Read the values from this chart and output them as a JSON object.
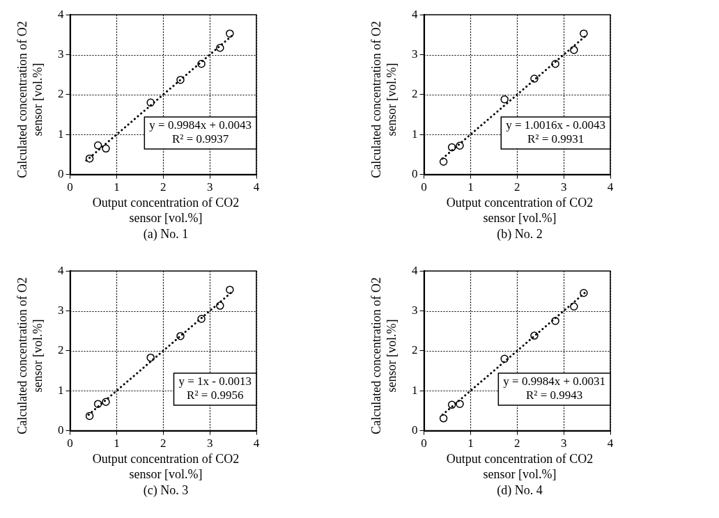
{
  "chart_data": [
    {
      "type": "scatter",
      "title": "(a) No. 1",
      "xlabel": "Output concentration of CO2 sensor [vol.%]",
      "ylabel": "Calculated concentration of O2 sensor [vol.%]",
      "x": [
        0.42,
        0.6,
        0.77,
        1.73,
        2.37,
        2.82,
        3.22,
        3.43
      ],
      "series": [
        {
          "color": "#000000",
          "values": [
            0.4,
            0.73,
            0.65,
            1.8,
            2.37,
            2.77,
            3.17,
            3.53
          ],
          "marker": "circle"
        },
        {
          "type": "line",
          "color": "#000000",
          "x": [
            0.35,
            3.5
          ],
          "values": [
            0.35,
            3.5
          ],
          "marker": "none",
          "line_style": "dotted"
        }
      ],
      "annotations": [
        "y = 0.9984x + 0.0043",
        "R² = 0.9937"
      ],
      "xlim": [
        0,
        4
      ],
      "ylim": [
        0,
        4
      ],
      "xticks": [
        0,
        1,
        2,
        3,
        4
      ],
      "yticks": [
        0,
        1,
        2,
        3,
        4
      ],
      "grid": true,
      "legend": false
    },
    {
      "type": "scatter",
      "title": "(b) No. 2",
      "xlabel": "Output concentration of CO2 sensor [vol.%]",
      "ylabel": "Calculated concentration of O2 sensor [vol.%]",
      "x": [
        0.42,
        0.6,
        0.77,
        1.73,
        2.37,
        2.82,
        3.22,
        3.43
      ],
      "series": [
        {
          "color": "#000000",
          "values": [
            0.32,
            0.68,
            0.72,
            1.88,
            2.4,
            2.77,
            3.12,
            3.53
          ],
          "marker": "circle"
        },
        {
          "type": "line",
          "color": "#000000",
          "x": [
            0.4,
            3.45
          ],
          "values": [
            0.4,
            3.45
          ],
          "marker": "none",
          "line_style": "dotted"
        }
      ],
      "annotations": [
        "y = 1.0016x - 0.0043",
        "R² = 0.9931"
      ],
      "xlim": [
        0,
        4
      ],
      "ylim": [
        0,
        4
      ],
      "xticks": [
        0,
        1,
        2,
        3,
        4
      ],
      "yticks": [
        0,
        1,
        2,
        3,
        4
      ],
      "grid": true,
      "legend": false
    },
    {
      "type": "scatter",
      "title": "(c) No. 3",
      "xlabel": "Output concentration of CO2 sensor [vol.%]",
      "ylabel": "Calculated concentration of O2 sensor [vol.%]",
      "x": [
        0.42,
        0.6,
        0.77,
        1.73,
        2.37,
        2.82,
        3.22,
        3.43
      ],
      "series": [
        {
          "color": "#000000",
          "values": [
            0.37,
            0.67,
            0.72,
            1.83,
            2.37,
            2.8,
            3.13,
            3.53
          ],
          "marker": "circle"
        },
        {
          "type": "line",
          "color": "#000000",
          "x": [
            0.4,
            3.45
          ],
          "values": [
            0.4,
            3.45
          ],
          "marker": "none",
          "line_style": "dotted"
        }
      ],
      "annotations": [
        "y = 1x - 0.0013",
        "R² = 0.9956"
      ],
      "xlim": [
        0,
        4
      ],
      "ylim": [
        0,
        4
      ],
      "xticks": [
        0,
        1,
        2,
        3,
        4
      ],
      "yticks": [
        0,
        1,
        2,
        3,
        4
      ],
      "grid": true,
      "legend": false
    },
    {
      "type": "scatter",
      "title": "(d) No. 4",
      "xlabel": "Output concentration of CO2 sensor [vol.%]",
      "ylabel": "Calculated concentration of O2 sensor [vol.%]",
      "x": [
        0.42,
        0.6,
        0.77,
        1.73,
        2.37,
        2.82,
        3.22,
        3.43
      ],
      "series": [
        {
          "color": "#000000",
          "values": [
            0.31,
            0.65,
            0.67,
            1.8,
            2.38,
            2.75,
            3.11,
            3.45
          ],
          "marker": "circle"
        },
        {
          "type": "line",
          "color": "#000000",
          "x": [
            0.4,
            3.45
          ],
          "values": [
            0.4,
            3.45
          ],
          "marker": "none",
          "line_style": "dotted"
        }
      ],
      "annotations": [
        "y = 0.9984x + 0.0031",
        "R² = 0.9943"
      ],
      "xlim": [
        0,
        4
      ],
      "ylim": [
        0,
        4
      ],
      "xticks": [
        0,
        1,
        2,
        3,
        4
      ],
      "yticks": [
        0,
        1,
        2,
        3,
        4
      ],
      "grid": true,
      "legend": false
    }
  ]
}
